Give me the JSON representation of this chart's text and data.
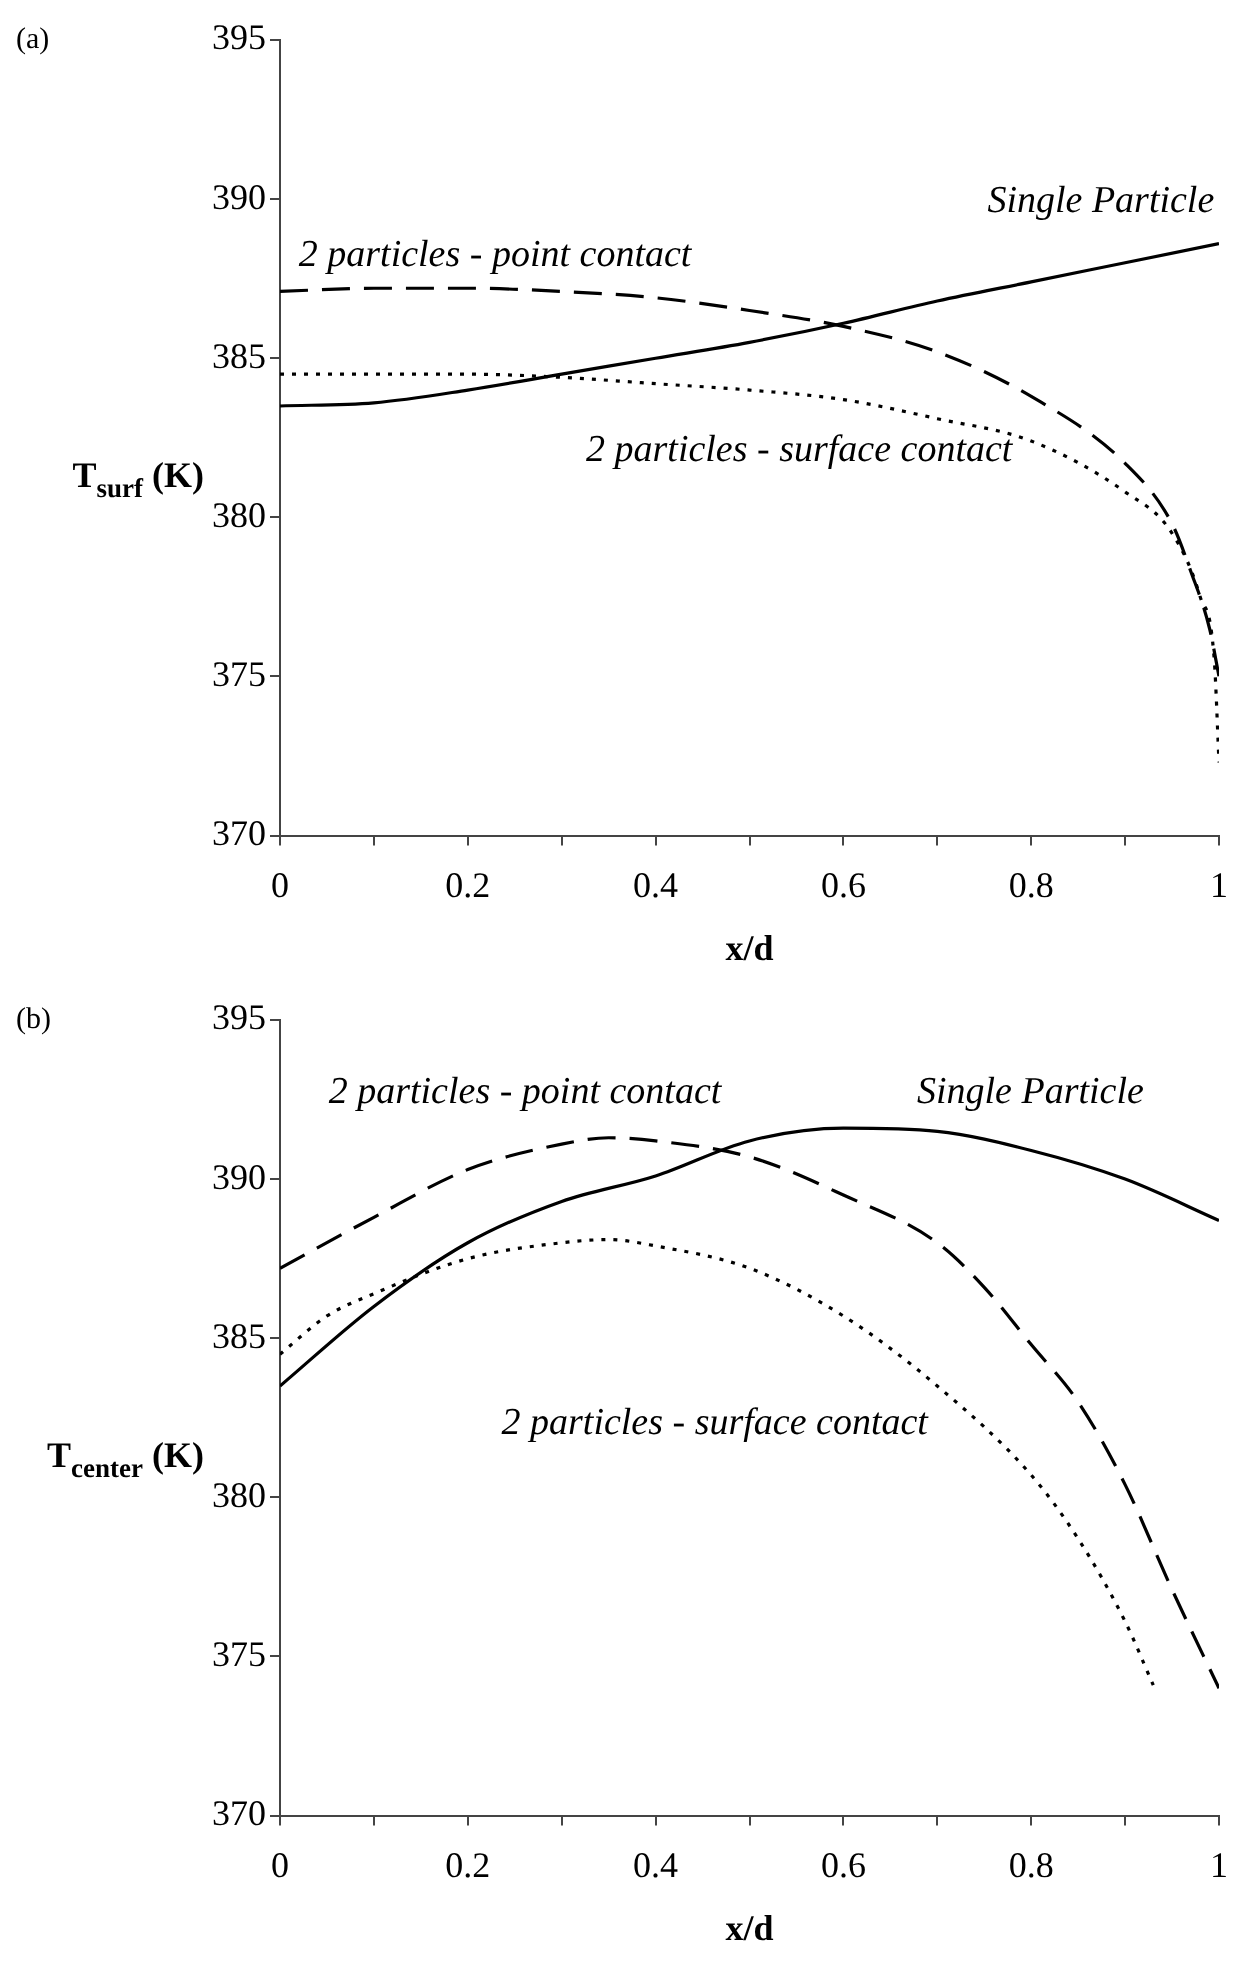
{
  "chart_data": [
    {
      "type": "line",
      "title": "(a)",
      "xlabel": "x/d",
      "ylabel": "T$_{surf}$ (K)",
      "xlim": [
        0,
        1
      ],
      "ylim": [
        370,
        395
      ],
      "marker": "none",
      "xticks": [
        0,
        {
          "value": 0.1,
          "label": null
        },
        0.2,
        {
          "value": 0.3,
          "label": null
        },
        0.4,
        {
          "value": 0.5,
          "label": null
        },
        0.6,
        {
          "value": 0.7,
          "label": null
        },
        0.8,
        {
          "value": 0.9,
          "label": null
        },
        1
      ],
      "yticks": [
        370,
        375,
        380,
        385,
        390,
        395
      ],
      "series": [
        {
          "name": "Single Particle",
          "color": "#000000",
          "line_style": "solid",
          "x": [
            0,
            0.1,
            0.2,
            0.3,
            0.4,
            0.5,
            0.6,
            0.7,
            0.8,
            0.9,
            1
          ],
          "values": [
            383.5,
            383.6,
            384.0,
            384.5,
            385.0,
            385.5,
            386.1,
            386.8,
            387.4,
            388.0,
            388.6
          ]
        },
        {
          "name": "2 particles - point contact",
          "color": "#000000",
          "line_style": "dashed",
          "x": [
            0,
            0.1,
            0.2,
            0.3,
            0.4,
            0.5,
            0.6,
            0.7,
            0.8,
            0.9,
            0.95,
            0.97,
            0.99,
            1
          ],
          "values": [
            387.1,
            387.2,
            387.2,
            387.1,
            386.9,
            386.5,
            386.0,
            385.2,
            383.8,
            381.7,
            379.8,
            378.3,
            376.5,
            375.0
          ]
        },
        {
          "name": "2 particles - surface contact",
          "color": "#000000",
          "line_style": "dotted",
          "x": [
            0,
            0.1,
            0.2,
            0.3,
            0.4,
            0.5,
            0.6,
            0.7,
            0.8,
            0.9,
            0.95,
            0.98,
            0.995,
            1
          ],
          "values": [
            384.5,
            384.5,
            384.5,
            384.4,
            384.2,
            384.0,
            383.7,
            383.1,
            382.4,
            380.8,
            379.5,
            377.5,
            375.5,
            372.3
          ]
        }
      ]
    },
    {
      "type": "line",
      "title": "(b)",
      "xlabel": "x/d",
      "ylabel": "T$_{center}$ (K)",
      "xlim": [
        0,
        1
      ],
      "ylim": [
        370,
        395
      ],
      "marker": "none",
      "xticks": [
        0,
        {
          "value": 0.1,
          "label": null
        },
        0.2,
        {
          "value": 0.3,
          "label": null
        },
        0.4,
        {
          "value": 0.5,
          "label": null
        },
        0.6,
        {
          "value": 0.7,
          "label": null
        },
        0.8,
        {
          "value": 0.9,
          "label": null
        },
        1
      ],
      "yticks": [
        370,
        375,
        380,
        385,
        390,
        395
      ],
      "series": [
        {
          "name": "Single Particle",
          "color": "#000000",
          "line_style": "solid",
          "x": [
            0,
            0.1,
            0.2,
            0.3,
            0.4,
            0.5,
            0.6,
            0.7,
            0.8,
            0.9,
            1
          ],
          "values": [
            383.5,
            386.0,
            388.0,
            389.3,
            390.1,
            391.2,
            391.6,
            391.5,
            390.9,
            390.0,
            388.7
          ]
        },
        {
          "name": "2 particles - point contact",
          "color": "#000000",
          "line_style": "dashed",
          "x": [
            0,
            0.1,
            0.2,
            0.3,
            0.35,
            0.4,
            0.5,
            0.6,
            0.7,
            0.75,
            0.8,
            0.85,
            0.9,
            0.95,
            1
          ],
          "values": [
            387.2,
            388.8,
            390.3,
            391.1,
            391.3,
            391.2,
            390.7,
            389.5,
            388.0,
            386.6,
            384.8,
            383.0,
            380.4,
            377.1,
            374.0
          ]
        },
        {
          "name": "2 particles - surface contact",
          "color": "#000000",
          "line_style": "dotted",
          "x": [
            0,
            0.05,
            0.1,
            0.2,
            0.3,
            0.35,
            0.4,
            0.5,
            0.6,
            0.7,
            0.8,
            0.85,
            0.9,
            0.93
          ],
          "values": [
            384.5,
            385.7,
            386.4,
            387.5,
            388.0,
            388.1,
            387.9,
            387.2,
            385.7,
            383.5,
            380.7,
            378.7,
            376.1,
            374.1
          ]
        }
      ]
    }
  ]
}
